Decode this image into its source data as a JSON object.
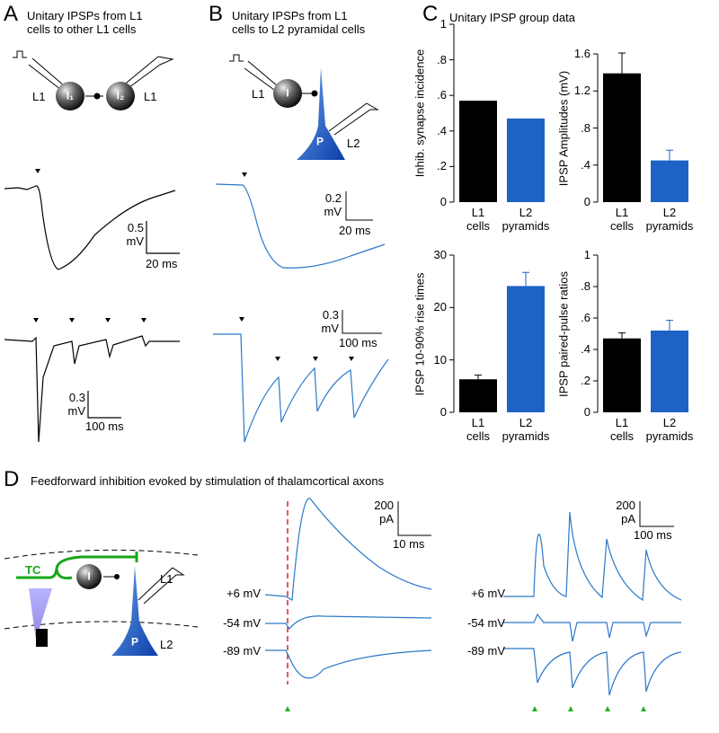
{
  "panels": [
    {
      "letter": "A",
      "title": "Unitary IPSPs from L1\ncells to other L1 cells",
      "labels": [
        "L1",
        "I₁",
        "I₂",
        "L1"
      ],
      "scale_bars": [
        "0.5\nmV",
        "20 ms",
        "0.3\nmV",
        "100 ms"
      ]
    },
    {
      "letter": "B",
      "title": "Unitary IPSPs from L1\ncells to L2 pyramidal cells",
      "labels": [
        "L1",
        "I",
        "P",
        "L2"
      ],
      "scale_bars": [
        "0.2\nmV",
        "20 ms",
        "0.3\nmV",
        "100 ms"
      ]
    },
    {
      "letter": "C",
      "title": "Unitary IPSP group data"
    },
    {
      "letter": "D",
      "title": "Feedforward inhibition evoked by stimulation of thalamcortical axons",
      "labels": [
        "TC",
        "I",
        "L1",
        "P",
        "L2"
      ],
      "holding": [
        "+6 mV",
        "-54 mV",
        "-89 mV"
      ],
      "holding_right": [
        "+6 mV",
        "-54 mV",
        "-89 mV"
      ],
      "scale_bars": [
        "200\npA",
        "10 ms",
        "200\npA",
        "100 ms"
      ]
    }
  ],
  "chart_data": [
    {
      "type": "bar",
      "y_label": "Inhib. synapse incidence",
      "categories": [
        "L1\ncells",
        "L2\npyramids"
      ],
      "values": [
        0.57,
        0.47
      ],
      "colors": [
        "#000000",
        "#1e62c6"
      ],
      "ylim": [
        0,
        1
      ],
      "yticks": [
        0,
        {
          "value": 0.2,
          "label": ".2"
        },
        {
          "value": 0.4,
          "label": ".4"
        },
        {
          "value": 0.6,
          "label": ".6"
        },
        {
          "value": 0.8,
          "label": ".8"
        },
        1
      ]
    },
    {
      "type": "bar",
      "y_label": "IPSP Amplitudes (mV)",
      "categories": [
        "L1\ncells",
        "L2\npyramids"
      ],
      "values": [
        1.39,
        0.45
      ],
      "errors": [
        0.22,
        0.11
      ],
      "colors": [
        "#000000",
        "#1e62c6"
      ],
      "ylim": [
        0,
        1.6
      ],
      "yticks": [
        0,
        {
          "value": 0.4,
          "label": ".4"
        },
        {
          "value": 0.8,
          "label": ".8"
        },
        1.2,
        1.6
      ]
    },
    {
      "type": "bar",
      "y_label": "IPSP 10-90% rise times",
      "categories": [
        "L1\ncells",
        "L2\npyramids"
      ],
      "values": [
        6.3,
        24.1
      ],
      "errors": [
        0.8,
        2.6
      ],
      "colors": [
        "#000000",
        "#1e62c6"
      ],
      "ylim": [
        0,
        30
      ],
      "yticks": [
        0,
        10,
        20,
        30
      ]
    },
    {
      "type": "bar",
      "y_label": "IPSP paired-pulse ratios",
      "categories": [
        "L1\ncells",
        "L2\npyramids"
      ],
      "values": [
        0.47,
        0.52
      ],
      "errors": [
        0.035,
        0.065
      ],
      "colors": [
        "#000000",
        "#1e62c6"
      ],
      "ylim": [
        0,
        1
      ],
      "yticks": [
        0,
        {
          "value": 0.2,
          "label": ".2"
        },
        {
          "value": 0.4,
          "label": ".4"
        },
        {
          "value": 0.6,
          "label": ".6"
        },
        {
          "value": 0.8,
          "label": ".8"
        },
        1
      ]
    }
  ]
}
